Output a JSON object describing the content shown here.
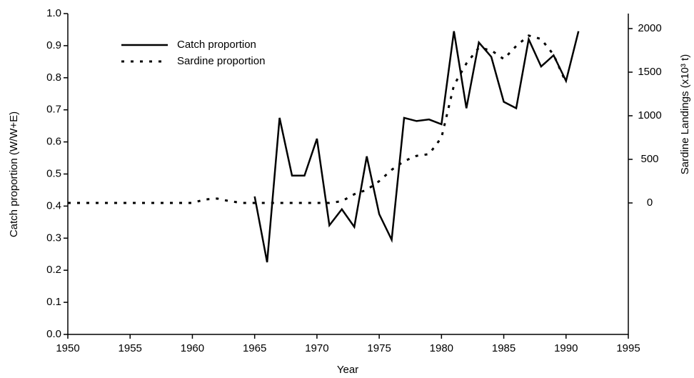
{
  "chart_data": {
    "type": "line",
    "xlabel": "Year",
    "ylabel": "Catch proportion (W/W+E)",
    "y2label": "Sardine Landings (x10³ t)",
    "x": [
      1950,
      1951,
      1952,
      1953,
      1954,
      1955,
      1956,
      1957,
      1958,
      1959,
      1960,
      1961,
      1962,
      1963,
      1964,
      1965,
      1966,
      1967,
      1968,
      1969,
      1970,
      1971,
      1972,
      1973,
      1974,
      1975,
      1976,
      1977,
      1978,
      1979,
      1980,
      1981,
      1982,
      1983,
      1984,
      1985,
      1986,
      1987,
      1988,
      1989,
      1990,
      1991
    ],
    "series": [
      {
        "name": "Catch proportion",
        "color": "#000000",
        "style": "solid",
        "values": [
          null,
          null,
          null,
          null,
          null,
          null,
          null,
          null,
          null,
          null,
          null,
          null,
          null,
          null,
          null,
          0.43,
          0.225,
          0.675,
          0.495,
          0.495,
          0.61,
          0.34,
          0.39,
          0.335,
          0.555,
          0.375,
          0.295,
          0.675,
          0.665,
          0.67,
          0.655,
          0.945,
          0.705,
          0.91,
          0.865,
          0.725,
          0.705,
          0.92,
          0.835,
          0.87,
          0.79,
          0.945
        ]
      },
      {
        "name": "Sardine proportion",
        "color": "#000000",
        "style": "dotted",
        "axis": "y2",
        "values": [
          0,
          0,
          0,
          0,
          0,
          0,
          0,
          0,
          0,
          0,
          0,
          40,
          50,
          20,
          0,
          0,
          0,
          0,
          0,
          0,
          0,
          0,
          20,
          100,
          150,
          250,
          380,
          480,
          540,
          560,
          750,
          1350,
          1600,
          1780,
          1750,
          1650,
          1800,
          1920,
          1880,
          1700,
          1380,
          null
        ]
      }
    ],
    "xlim": [
      1950,
      1995
    ],
    "xticks": [
      1950,
      1955,
      1960,
      1965,
      1970,
      1975,
      1980,
      1985,
      1990,
      1995
    ],
    "ylim": [
      0,
      1
    ],
    "yticks": [
      {
        "value": 0,
        "label": "0.0"
      },
      0.1,
      0.2,
      0.3,
      0.4,
      0.5,
      0.6,
      0.7,
      0.8,
      0.9,
      {
        "value": 1,
        "label": "1.0"
      }
    ],
    "y2lim": [
      -1508,
      2172
    ],
    "y2ticks": [
      0,
      500,
      1000,
      1500,
      2000
    ],
    "legend": "upper-left",
    "grid": false
  }
}
